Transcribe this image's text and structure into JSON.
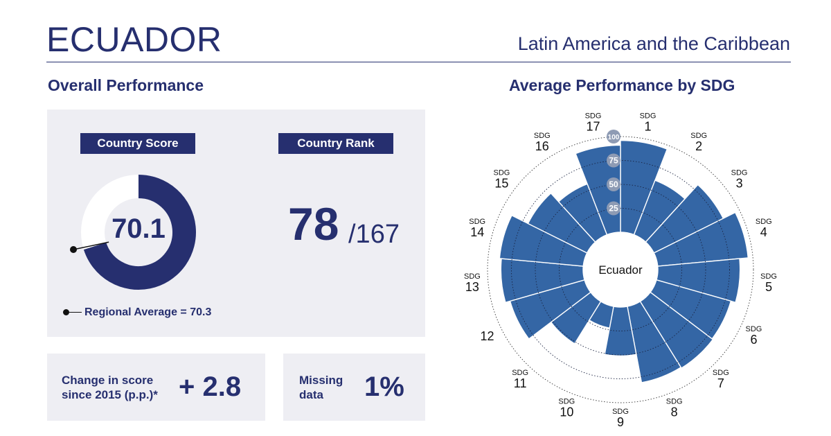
{
  "header": {
    "country": "ECUADOR",
    "region": "Latin America and the Caribbean"
  },
  "overall": {
    "section_title": "Overall Performance",
    "score_label": "Country Score",
    "score_value": "70.1",
    "score_fraction": 0.701,
    "regional_average_fraction": 0.703,
    "regional_average_text": "Regional Average = 70.3",
    "rank_label": "Country Rank",
    "rank_value": "78",
    "rank_total": "/167",
    "change_label_line1": "Change in score",
    "change_label_line2": "since 2015 (p.p.)*",
    "change_value": "+ 2.8",
    "missing_label_line1": "Missing",
    "missing_label_line2": "data",
    "missing_value": "1%"
  },
  "colors": {
    "navy": "#262f6f",
    "petal": "#3466a5",
    "panel": "#eeeef3",
    "scale_badge": "#8e9bb4"
  },
  "chart_data": {
    "type": "polar-bar",
    "title": "Average Performance by SDG",
    "center_label": "Ecuador",
    "sdg_prefix": "SDG",
    "categories": [
      "1",
      "2",
      "3",
      "4",
      "5",
      "6",
      "7",
      "8",
      "9",
      "10",
      "11",
      "12",
      "13",
      "14",
      "15",
      "16",
      "17"
    ],
    "values": [
      96,
      61,
      81,
      95,
      86,
      81,
      82,
      81,
      51,
      23,
      52,
      81,
      86,
      88,
      69,
      57,
      91
    ],
    "scale_ticks": [
      "25",
      "50",
      "75",
      "100"
    ],
    "rmax": 100,
    "show_prefix": [
      true,
      true,
      true,
      true,
      true,
      true,
      true,
      true,
      true,
      true,
      true,
      false,
      true,
      true,
      true,
      true,
      true
    ]
  }
}
